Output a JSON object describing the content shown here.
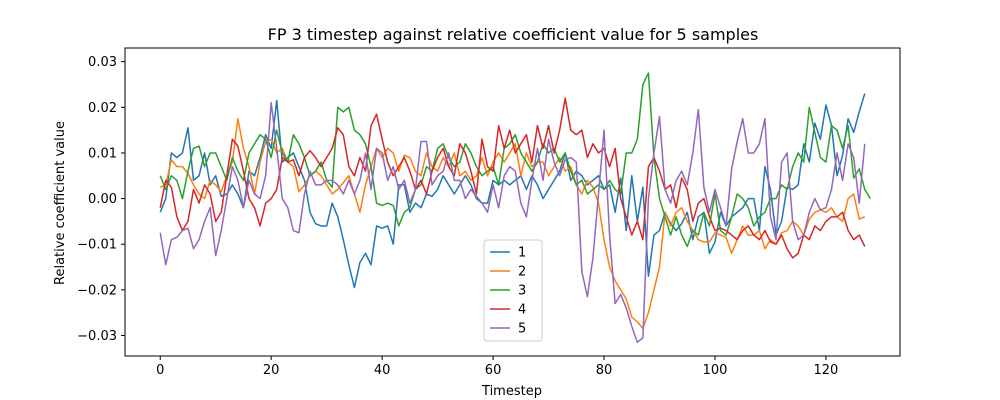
{
  "chart_data": {
    "type": "line",
    "title": "FP 3 timestep against relative coefficient value for 5 samples",
    "xlabel": "Timestep",
    "ylabel": "Relative coefficient value",
    "xlim": [
      -6.35,
      133.35
    ],
    "ylim": [
      -0.0345,
      0.033
    ],
    "xticks": [
      0,
      20,
      40,
      60,
      80,
      100,
      120
    ],
    "yticks": [
      -0.03,
      -0.02,
      -0.01,
      0.0,
      0.01,
      0.02,
      0.03
    ],
    "ytick_labels": [
      "−0.03",
      "−0.02",
      "−0.01",
      "0.00",
      "0.01",
      "0.02",
      "0.03"
    ],
    "legend_position": "lower center",
    "grid": false,
    "series": [
      {
        "name": "1",
        "color": "#1f77b4",
        "values": [
          -0.003,
          0.0,
          0.01,
          0.009,
          0.01,
          0.0155,
          0.004,
          0.005,
          0.01,
          0.003,
          0.005,
          0.0005,
          0.001,
          0.003,
          0.001,
          -0.002,
          0.006,
          0.005,
          0.009,
          0.014,
          0.011,
          0.0215,
          0.008,
          0.009,
          0.01,
          0.007,
          0.004,
          -0.003,
          -0.0055,
          -0.006,
          -0.006,
          -0.001,
          -0.004,
          -0.009,
          -0.0145,
          -0.0195,
          -0.014,
          -0.012,
          -0.0145,
          -0.006,
          -0.0065,
          -0.006,
          -0.01,
          0.003,
          0.003,
          -0.003,
          -0.001,
          -0.002,
          0.001,
          0.0005,
          0.002,
          0.005,
          0.003,
          0.001,
          0.003,
          0.005,
          0.003,
          0.0,
          -0.001,
          -0.001,
          0.004,
          0.003,
          0.004,
          0.003,
          0.004,
          0.005,
          0.002,
          0.005,
          0.003,
          0.0,
          0.002,
          0.004,
          0.006,
          0.01,
          0.004,
          0.006,
          0.005,
          0.003,
          0.004,
          0.005,
          0.002,
          0.003,
          -0.003,
          0.0045,
          -0.007,
          0.005,
          -0.005,
          0.0025,
          -0.017,
          -0.008,
          -0.007,
          -0.003,
          -0.0055,
          -0.007,
          -0.0055,
          -0.003,
          -0.009,
          -0.004,
          -0.003,
          -0.012,
          -0.0095,
          -0.003,
          -0.006,
          -0.004,
          -0.003,
          -0.002,
          0.0,
          0.0,
          -0.007,
          0.007,
          0.002,
          -0.008,
          -0.005,
          0.0025,
          0.002,
          0.003,
          0.012,
          0.008,
          0.0165,
          0.013,
          0.0205,
          0.016,
          0.005,
          0.0095,
          0.0175,
          0.0145,
          0.019,
          0.023
        ]
      },
      {
        "name": "2",
        "color": "#ff7f0e",
        "values": [
          0.0025,
          0.003,
          0.0085,
          0.007,
          0.007,
          0.0055,
          0.003,
          0.001,
          0.0,
          0.004,
          0.003,
          0.0015,
          0.005,
          0.008,
          0.0175,
          0.011,
          0.007,
          0.001,
          0.008,
          0.0125,
          0.013,
          0.01,
          0.011,
          0.008,
          0.007,
          0.0015,
          0.003,
          0.005,
          0.006,
          0.005,
          0.003,
          0.001,
          0.002,
          0.0035,
          0.005,
          0.001,
          -0.003,
          0.003,
          0.007,
          0.011,
          0.009,
          0.011,
          0.01,
          0.006,
          0.0095,
          0.009,
          0.006,
          0.005,
          0.01,
          0.007,
          0.006,
          0.009,
          0.007,
          0.01,
          0.005,
          0.006,
          0.004,
          0.005,
          0.009,
          0.005,
          0.008,
          0.01,
          0.008,
          0.01,
          0.012,
          0.005,
          0.01,
          0.007,
          0.008,
          0.008,
          0.005,
          0.007,
          0.009,
          0.006,
          0.007,
          0.003,
          0.001,
          0.004,
          0.0025,
          -0.001,
          -0.009,
          -0.015,
          -0.018,
          -0.02,
          -0.022,
          -0.026,
          -0.027,
          -0.0285,
          -0.025,
          -0.02,
          -0.015,
          -0.003,
          -0.006,
          -0.003,
          -0.002,
          -0.005,
          -0.007,
          -0.009,
          -0.0095,
          -0.0095,
          -0.0075,
          -0.008,
          -0.0085,
          -0.012,
          -0.009,
          -0.006,
          -0.008,
          -0.008,
          -0.007,
          -0.011,
          -0.009,
          -0.01,
          -0.0075,
          -0.007,
          -0.005,
          -0.006,
          -0.008,
          -0.0045,
          -0.003,
          -0.0025,
          -0.003,
          -0.002,
          -0.004,
          -0.005,
          0.0,
          0.001,
          -0.0045,
          -0.004
        ]
      },
      {
        "name": "3",
        "color": "#2ca02c",
        "values": [
          0.005,
          0.002,
          0.005,
          0.004,
          0.0,
          0.006,
          0.011,
          0.0115,
          0.007,
          0.01,
          0.01,
          0.007,
          0.004,
          0.009,
          0.006,
          0.004,
          0.01,
          0.012,
          0.014,
          0.013,
          0.009,
          0.015,
          0.01,
          0.008,
          0.014,
          0.012,
          0.009,
          0.005,
          0.006,
          0.008,
          0.004,
          0.0025,
          0.02,
          0.019,
          0.02,
          0.015,
          0.014,
          0.012,
          0.007,
          -0.001,
          -0.0015,
          -0.001,
          -0.0015,
          -0.006,
          -0.003,
          -0.002,
          0.002,
          0.003,
          0.007,
          0.006,
          0.011,
          0.012,
          0.009,
          0.007,
          0.008,
          0.012,
          0.01,
          0.007,
          0.005,
          0.006,
          0.007,
          0.003,
          0.011,
          0.012,
          0.014,
          0.01,
          0.008,
          0.006,
          0.008,
          0.012,
          0.01,
          0.011,
          0.008,
          0.01,
          0.006,
          0.003,
          0.004,
          0.001,
          0.002,
          0.003,
          0.002,
          0.004,
          0.002,
          0.001,
          0.01,
          0.01,
          0.013,
          0.025,
          0.0275,
          0.009,
          0.0,
          -0.004,
          -0.008,
          -0.004,
          -0.008,
          -0.0105,
          -0.007,
          -0.008,
          -0.003,
          -0.006,
          0.001,
          -0.007,
          -0.008,
          -0.004,
          0.001,
          0.0,
          -0.002,
          -0.006,
          -0.004,
          -0.003,
          0.0,
          0.0,
          0.003,
          0.002,
          0.007,
          0.01,
          0.008,
          0.02,
          0.0145,
          0.009,
          0.008,
          0.016,
          0.015,
          0.011,
          0.016,
          0.0045,
          0.0065,
          0.002,
          0.0
        ]
      },
      {
        "name": "4",
        "color": "#d62728",
        "values": [
          -0.002,
          0.004,
          0.0025,
          -0.004,
          -0.007,
          -0.005,
          0.002,
          -0.001,
          0.003,
          0.001,
          -0.005,
          -0.003,
          0.005,
          0.013,
          0.0115,
          0.006,
          0.0,
          -0.002,
          -0.006,
          -0.001,
          0.0,
          0.002,
          0.009,
          0.008,
          0.0085,
          0.005,
          0.009,
          0.0105,
          0.009,
          0.007,
          0.009,
          0.011,
          0.0155,
          0.014,
          0.007,
          0.005,
          0.009,
          0.006,
          0.016,
          0.0185,
          0.013,
          0.008,
          0.005,
          0.007,
          0.009,
          0.006,
          0.002,
          0.004,
          0.001,
          0.006,
          0.009,
          0.011,
          0.007,
          0.005,
          0.012,
          0.01,
          0.006,
          0.001,
          0.013,
          0.007,
          0.006,
          0.016,
          0.011,
          0.015,
          0.01,
          0.012,
          0.014,
          0.008,
          0.016,
          0.011,
          0.016,
          0.01,
          0.015,
          0.022,
          0.015,
          0.014,
          0.015,
          0.009,
          0.012,
          0.01,
          0.011,
          0.007,
          0.011,
          0.0,
          -0.004,
          -0.008,
          -0.005,
          -0.009,
          0.007,
          0.009,
          0.006,
          0.002,
          0.003,
          -0.002,
          0.0045,
          0.002,
          -0.005,
          -0.001,
          0.0,
          -0.004,
          -0.007,
          -0.0065,
          -0.007,
          -0.008,
          -0.009,
          -0.007,
          -0.006,
          -0.008,
          -0.009,
          -0.007,
          -0.0095,
          -0.01,
          -0.008,
          -0.011,
          -0.013,
          -0.012,
          -0.008,
          -0.009,
          -0.006,
          -0.007,
          -0.005,
          -0.004,
          -0.004,
          -0.003,
          -0.007,
          -0.009,
          -0.008,
          -0.0105
        ]
      },
      {
        "name": "5",
        "color": "#9467bd",
        "values": [
          -0.0075,
          -0.0145,
          -0.009,
          -0.0085,
          -0.007,
          -0.0065,
          -0.011,
          -0.009,
          -0.005,
          -0.002,
          -0.0125,
          -0.007,
          0.0,
          0.007,
          0.004,
          -0.002,
          0.004,
          0.001,
          0.0,
          0.005,
          0.021,
          0.011,
          0.0,
          -0.002,
          -0.007,
          -0.0075,
          0.001,
          0.006,
          0.003,
          0.003,
          0.004,
          0.004,
          0.003,
          0.001,
          0.004,
          0.001,
          0.004,
          0.01,
          0.002,
          0.011,
          0.01,
          0.004,
          0.007,
          0.002,
          0.004,
          -0.001,
          0.002,
          0.0125,
          0.0125,
          0.003,
          0.005,
          0.006,
          0.01,
          0.004,
          0.004,
          0.0,
          0.002,
          0.0005,
          -0.001,
          -0.003,
          0.003,
          -0.002,
          0.005,
          0.007,
          0.006,
          -0.001,
          -0.004,
          0.004,
          0.011,
          0.004,
          0.013,
          0.008,
          0.005,
          0.0085,
          0.009,
          0.008,
          -0.016,
          -0.0215,
          -0.013,
          0.001,
          0.015,
          -0.008,
          -0.023,
          -0.021,
          -0.024,
          -0.028,
          -0.0315,
          -0.0305,
          0.0,
          0.01,
          0.018,
          0.002,
          -0.001,
          0.004,
          0.006,
          0.003,
          0.01,
          0.0195,
          0.0025,
          -0.003,
          0.002,
          -0.002,
          -0.006,
          0.0065,
          0.0125,
          0.0175,
          0.01,
          0.01,
          0.012,
          0.0175,
          -0.004,
          -0.009,
          0.008,
          0.01,
          -0.005,
          -0.009,
          -0.008,
          -0.003,
          0.0,
          -0.0025,
          -0.002,
          0.002,
          0.01,
          0.004,
          0.012,
          0.009,
          -0.001,
          0.012
        ]
      }
    ]
  }
}
